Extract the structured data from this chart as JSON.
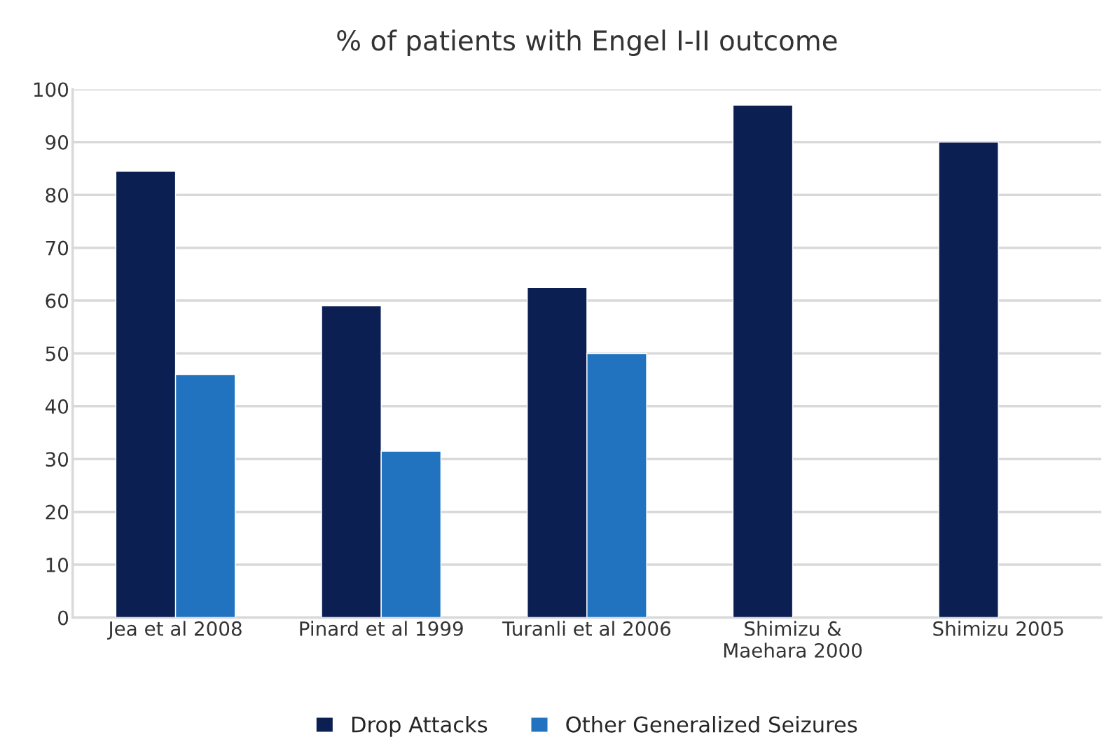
{
  "chart_data": {
    "type": "bar",
    "title": "% of patients with Engel I-II outcome",
    "categories": [
      "Jea et al 2008",
      "Pinard et al 1999",
      "Turanli et al 2006",
      "Shimizu &\nMaehara 2000",
      "Shimizu 2005"
    ],
    "series": [
      {
        "name": "Drop Attacks",
        "color": "#0b1f52",
        "values": [
          84.5,
          59,
          62.5,
          97,
          90
        ]
      },
      {
        "name": "Other Generalized Seizures",
        "color": "#2173c0",
        "values": [
          46,
          31.5,
          50,
          null,
          null
        ]
      }
    ],
    "ylim": [
      0,
      100
    ],
    "yticks": [
      0,
      10,
      20,
      30,
      40,
      50,
      60,
      70,
      80,
      90,
      100
    ],
    "grid": "y",
    "legend": "bottom"
  }
}
